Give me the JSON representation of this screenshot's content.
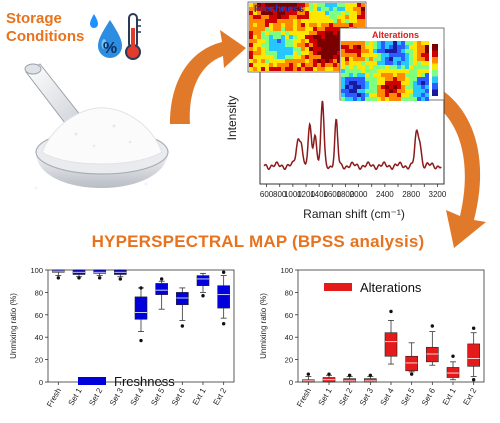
{
  "storage": {
    "title_line1": "Storage",
    "title_line2": "Conditions",
    "icons": [
      "water-drop-icon",
      "percent-icon",
      "thermometer-icon"
    ]
  },
  "powder_image": "scoop-of-white-powder",
  "raman": {
    "map_labels": {
      "freshness": "Freshness",
      "alterations": "Alterations"
    },
    "ylabel": "Intensity",
    "xlabel": "Raman shift (cm⁻¹)",
    "xticks": [
      600,
      800,
      1000,
      1200,
      1400,
      1600,
      1800,
      2000,
      2200,
      2400,
      2600,
      2800,
      3000,
      3200
    ],
    "xtick_labels": [
      "600",
      "800",
      "1000",
      "1200",
      "1400",
      "1600",
      "1800",
      "2000",
      "2200",
      "2400",
      "2600",
      "2800",
      "3000",
      "3200"
    ],
    "colorbar_colors": [
      "#1a1a9e",
      "#2a5cff",
      "#26c6ff",
      "#7fff7f",
      "#ffe600",
      "#ff8a00",
      "#d10000",
      "#7a0000"
    ]
  },
  "hyper_title": "HYPERSPECTRAL MAP (BPSS analysis)",
  "colors": {
    "accent": "#e8731e",
    "freshness": "#0000dd",
    "alterations": "#e51a1a",
    "spectrum": "#8b1a1a"
  },
  "chart_data": [
    {
      "type": "box",
      "legend": "Freshness",
      "ylabel": "Unmixing ratio (%)",
      "ylim": [
        0,
        100
      ],
      "yticks": [
        "0",
        "20",
        "40",
        "60",
        "80",
        "100"
      ],
      "categories": [
        "Fresh",
        "Set 1",
        "Set 2",
        "Set 3",
        "Set 4",
        "Set 5",
        "Set 6",
        "Ext 1",
        "Ext 2"
      ],
      "boxes": [
        {
          "q1": 98,
          "median": 99,
          "q3": 100,
          "wlo": 95,
          "whi": 100,
          "out": [
            93
          ]
        },
        {
          "q1": 96,
          "median": 98,
          "q3": 100,
          "wlo": 94,
          "whi": 100,
          "out": [
            93
          ]
        },
        {
          "q1": 97,
          "median": 98,
          "q3": 100,
          "wlo": 95,
          "whi": 100,
          "out": [
            93
          ]
        },
        {
          "q1": 96,
          "median": 98,
          "q3": 100,
          "wlo": 94,
          "whi": 100,
          "out": [
            92
          ]
        },
        {
          "q1": 56,
          "median": 62,
          "q3": 76,
          "wlo": 45,
          "whi": 84,
          "out": [
            37,
            84
          ]
        },
        {
          "q1": 78,
          "median": 82,
          "q3": 88,
          "wlo": 65,
          "whi": 90,
          "out": [
            92
          ]
        },
        {
          "q1": 69,
          "median": 75,
          "q3": 80,
          "wlo": 55,
          "whi": 84,
          "out": [
            50
          ]
        },
        {
          "q1": 86,
          "median": 92,
          "q3": 95,
          "wlo": 80,
          "whi": 97,
          "out": [
            77
          ]
        },
        {
          "q1": 66,
          "median": 78,
          "q3": 86,
          "wlo": 57,
          "whi": 95,
          "out": [
            52,
            98
          ]
        }
      ]
    },
    {
      "type": "box",
      "legend": "Alterations",
      "ylabel": "Unmixing ratio (%)",
      "ylim": [
        0,
        100
      ],
      "yticks": [
        "0",
        "20",
        "40",
        "60",
        "80",
        "100"
      ],
      "categories": [
        "Fresh",
        "Set 1",
        "Set 2",
        "Set 3",
        "Set 4",
        "Set 5",
        "Set 6",
        "Ext 1",
        "Ext 2"
      ],
      "boxes": [
        {
          "q1": 0,
          "median": 1,
          "q3": 2,
          "wlo": 0,
          "whi": 5,
          "out": [
            7
          ]
        },
        {
          "q1": 0,
          "median": 2,
          "q3": 4,
          "wlo": 0,
          "whi": 6,
          "out": [
            7
          ]
        },
        {
          "q1": 0,
          "median": 1,
          "q3": 3,
          "wlo": 0,
          "whi": 5,
          "out": [
            6
          ]
        },
        {
          "q1": 0,
          "median": 1,
          "q3": 3,
          "wlo": 0,
          "whi": 5,
          "out": [
            6
          ]
        },
        {
          "q1": 23,
          "median": 36,
          "q3": 44,
          "wlo": 16,
          "whi": 55,
          "out": [
            63
          ]
        },
        {
          "q1": 10,
          "median": 17,
          "q3": 23,
          "wlo": 9,
          "whi": 35,
          "out": [
            7
          ]
        },
        {
          "q1": 18,
          "median": 25,
          "q3": 31,
          "wlo": 15,
          "whi": 45,
          "out": [
            50
          ]
        },
        {
          "q1": 4,
          "median": 8,
          "q3": 13,
          "wlo": 2,
          "whi": 18,
          "out": [
            23
          ]
        },
        {
          "q1": 14,
          "median": 21,
          "q3": 34,
          "wlo": 5,
          "whi": 44,
          "out": [
            2,
            48
          ]
        }
      ]
    }
  ]
}
